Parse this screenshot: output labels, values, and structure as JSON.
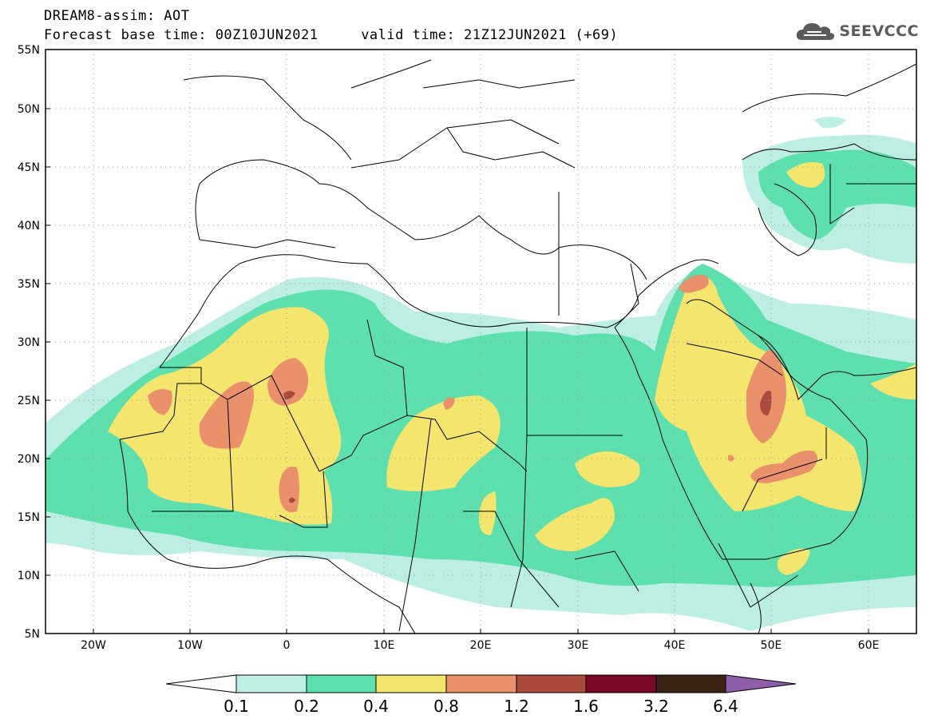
{
  "header": {
    "title_line1": "DREAM8-assim: AOT",
    "title_line2": "Forecast base time: 00Z10JUN2021     valid time: 21Z12JUN2021 (+69)",
    "logo_text": "SEEVCCC",
    "logo_icon": "cloud-icon"
  },
  "map": {
    "lat_range": [
      5,
      55
    ],
    "lon_range": [
      -25,
      65
    ],
    "lat_labels": [
      "55N",
      "50N",
      "45N",
      "40N",
      "35N",
      "30N",
      "25N",
      "20N",
      "15N",
      "10N",
      "5N"
    ],
    "lon_labels": [
      "20W",
      "10W",
      "0",
      "10E",
      "20E",
      "30E",
      "40E",
      "50E",
      "60E"
    ],
    "grid": "dotted"
  },
  "colorbar": {
    "labels": [
      "0.1",
      "0.2",
      "0.4",
      "0.8",
      "1.2",
      "1.6",
      "3.2",
      "6.4"
    ],
    "colors": [
      "#ffffff",
      "#bdeee4",
      "#5ddfae",
      "#f4e56e",
      "#ea906a",
      "#aa4b3c",
      "#7a0a28",
      "#3b2415",
      "#8e5fa8"
    ]
  }
}
